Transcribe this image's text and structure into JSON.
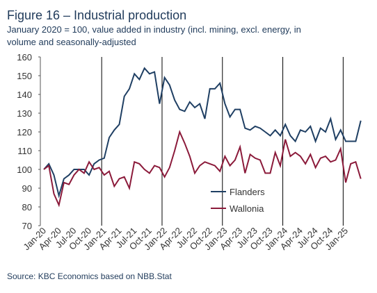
{
  "chart_data": {
    "type": "line",
    "title": "Figure 16 – Industrial production",
    "subtitle": [
      "January 2020 = 100, value added in industry (incl. mining, excl. energy, in",
      "volume and seasonally-adjusted"
    ],
    "source": "Source: KBC Economics based on NBB.Stat",
    "categories": [
      "Jan-20",
      null,
      null,
      "Apr-20",
      null,
      null,
      "Jul-20",
      null,
      null,
      "Oct-20",
      null,
      null,
      "Jan-21",
      null,
      null,
      "Apr-21",
      null,
      null,
      "Jul-21",
      null,
      null,
      "Oct-21",
      null,
      null,
      "Jan-22",
      null,
      null,
      "Apr-22",
      null,
      null,
      "Jul-22",
      null,
      null,
      "Oct-22",
      null,
      null,
      "Jan-23",
      null,
      null,
      "Apr-23",
      null,
      null,
      "Jul-23",
      null,
      null,
      "Oct-23",
      null,
      null,
      "Jan-24",
      null,
      null,
      "Apr-24",
      null,
      null,
      "Jul-24",
      null,
      null,
      "Oct-24",
      null,
      null,
      "Jan-25",
      null,
      null,
      null
    ],
    "series": [
      {
        "name": "Flanders",
        "color": "#1f3f63",
        "values": [
          100,
          103,
          97,
          86,
          95,
          97,
          100,
          100,
          100,
          97,
          103,
          105,
          106,
          117,
          121,
          124,
          139,
          143,
          151,
          148,
          154,
          151,
          152,
          135,
          149,
          145,
          137,
          132,
          131,
          136,
          133,
          135,
          127,
          143,
          143,
          146,
          135,
          128,
          132,
          132,
          122,
          121,
          123,
          122,
          120,
          118,
          121,
          118,
          124,
          118,
          115,
          121,
          120,
          123,
          115,
          122,
          120,
          127,
          116,
          121,
          115,
          115,
          115,
          126
        ]
      },
      {
        "name": "Wallonia",
        "color": "#8b1a3a",
        "values": [
          100,
          102,
          87,
          81,
          93,
          92,
          97,
          100,
          98,
          104,
          100,
          101,
          97,
          99,
          91,
          95,
          96,
          90,
          104,
          103,
          100,
          98,
          102,
          101,
          96,
          101,
          110,
          120,
          114,
          107,
          98,
          102,
          104,
          103,
          102,
          99,
          107,
          102,
          105,
          112,
          98,
          108,
          106,
          105,
          98,
          98,
          109,
          102,
          116,
          107,
          109,
          107,
          103,
          108,
          101,
          106,
          107,
          104,
          105,
          111,
          93,
          103,
          104,
          95
        ]
      }
    ],
    "ylim": [
      70,
      160
    ],
    "yticks": [
      70,
      80,
      90,
      100,
      110,
      120,
      130,
      140,
      150,
      160
    ],
    "grid": false,
    "year_dividers": true,
    "legend": "center"
  }
}
